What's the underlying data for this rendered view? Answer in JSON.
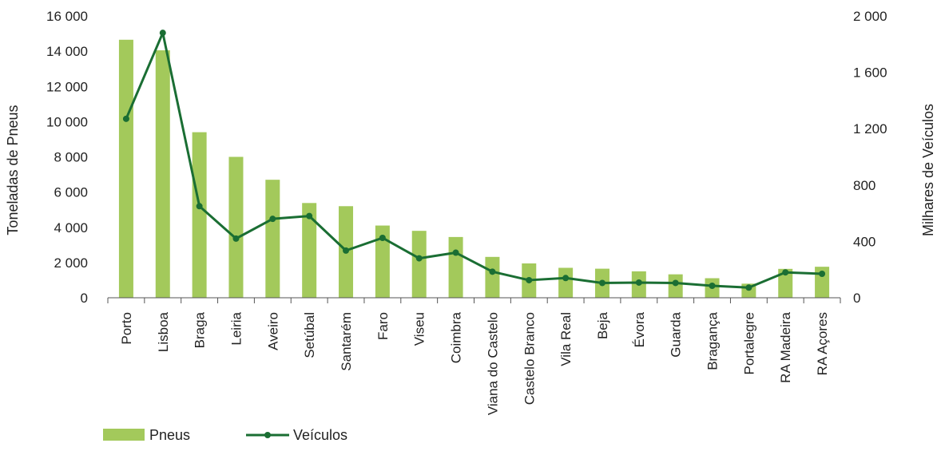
{
  "chart_data": {
    "type": "bar",
    "categories": [
      "Porto",
      "Lisboa",
      "Braga",
      "Leiria",
      "Aveiro",
      "Setúbal",
      "Santarém",
      "Faro",
      "Viseu",
      "Coimbra",
      "Viana do Castelo",
      "Castelo Branco",
      "Vila Real",
      "Beja",
      "Évora",
      "Guarda",
      "Bragança",
      "Portalegre",
      "RA Madeira",
      "RA Açores"
    ],
    "series": [
      {
        "name": "Pneus",
        "type": "bar",
        "axis": "left",
        "color": "#a3c95b",
        "values": [
          14650,
          14050,
          9400,
          8000,
          6700,
          5380,
          5200,
          4100,
          3800,
          3450,
          2320,
          1950,
          1700,
          1650,
          1500,
          1330,
          1110,
          800,
          1640,
          1760
        ]
      },
      {
        "name": "Veículos",
        "type": "line",
        "axis": "right",
        "color": "#1a6e33",
        "values": [
          1270,
          1880,
          650,
          420,
          560,
          580,
          335,
          425,
          280,
          320,
          185,
          125,
          140,
          105,
          108,
          105,
          85,
          72,
          180,
          170
        ]
      }
    ],
    "y_left": {
      "label": "Toneladas de Pneus",
      "range": [
        0,
        16000
      ],
      "ticks": [
        "0",
        "2 000",
        "4 000",
        "6 000",
        "8 000",
        "10 000",
        "12 000",
        "14 000",
        "16 000"
      ]
    },
    "y_right": {
      "label": "Milhares de Veículos",
      "range": [
        0,
        2000
      ],
      "ticks": [
        "0",
        "400",
        "800",
        "1 200",
        "1 600",
        "2 000"
      ]
    },
    "legend": {
      "placement": "bottom-left",
      "items": [
        "Pneus",
        "Veículos"
      ]
    },
    "grid": false
  }
}
